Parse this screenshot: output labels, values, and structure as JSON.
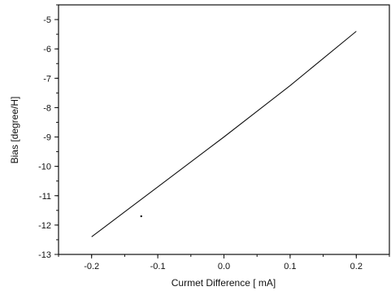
{
  "chart_data": {
    "type": "line",
    "title": "",
    "xlabel": "Curmet Difference [ mA]",
    "ylabel": "Bias [degree/H]",
    "xlim": [
      -0.25,
      0.25
    ],
    "ylim": [
      -13,
      -4.5
    ],
    "xticks": [
      -0.2,
      -0.1,
      0.0,
      0.1,
      0.2
    ],
    "xtick_labels": [
      "-0.2",
      "-0.1",
      "0.0",
      "0.1",
      "0.2"
    ],
    "yticks": [
      -5,
      -6,
      -7,
      -8,
      -9,
      -10,
      -11,
      -12,
      -13
    ],
    "ytick_labels": [
      "-5",
      "-6",
      "-7",
      "-8",
      "-9",
      "-10",
      "-11",
      "-12",
      "-13"
    ],
    "grid": false,
    "legend": "none",
    "series": [
      {
        "x": [
          -0.2,
          -0.1,
          0.0,
          0.1,
          0.2
        ],
        "y": [
          -12.4,
          -10.7,
          -9.0,
          -7.25,
          -5.4
        ]
      }
    ],
    "annotations_points": [
      {
        "x": -0.125,
        "y": -11.7
      }
    ],
    "line_color": "#111111"
  }
}
